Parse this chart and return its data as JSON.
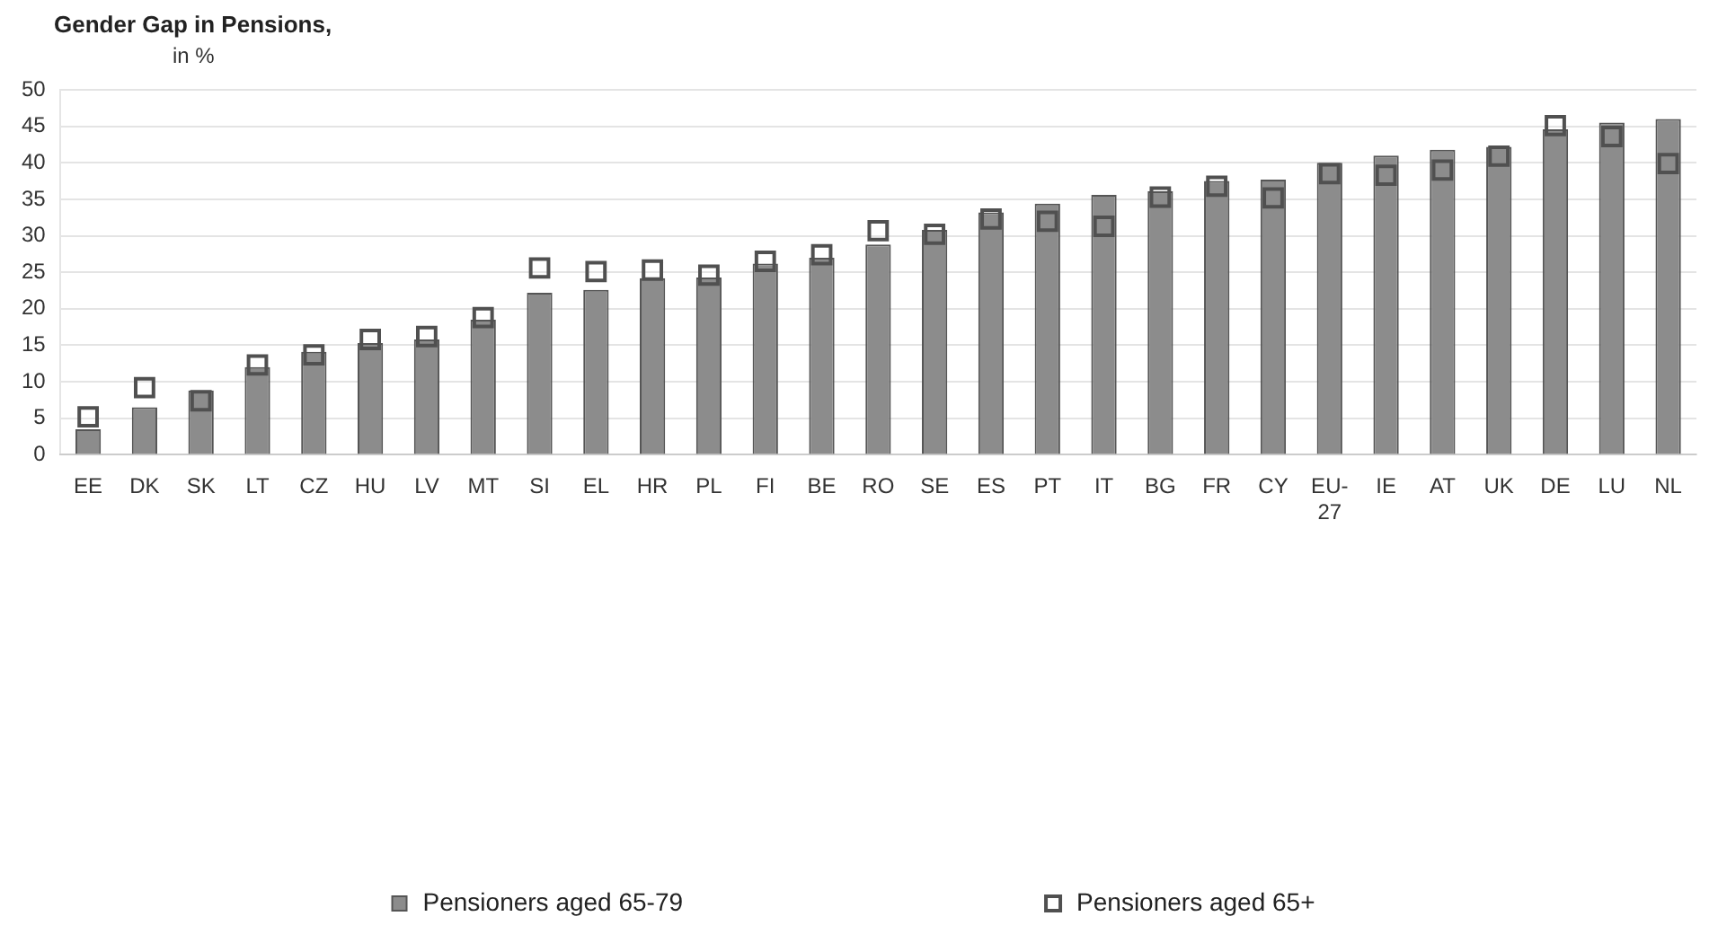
{
  "chart_data": {
    "type": "bar",
    "title": "Gender Gap in Pensions,",
    "ylabel": "in %",
    "categories": [
      "EE",
      "DK",
      "SK",
      "LT",
      "CZ",
      "HU",
      "LV",
      "MT",
      "SI",
      "EL",
      "HR",
      "PL",
      "FI",
      "BE",
      "RO",
      "SE",
      "ES",
      "PT",
      "IT",
      "BG",
      "FR",
      "CY",
      "EU-27",
      "IE",
      "AT",
      "UK",
      "DE",
      "LU",
      "NL"
    ],
    "series": [
      {
        "name": "Pensioners aged 65-79",
        "type": "bar",
        "color": "#8c8c8c",
        "values": [
          3.5,
          6.5,
          8.8,
          12.0,
          14.1,
          15.3,
          15.8,
          18.5,
          22.2,
          22.6,
          24.2,
          24.3,
          26.2,
          27.0,
          28.8,
          30.8,
          33.2,
          34.4,
          35.6,
          36.1,
          37.5,
          37.7,
          40.0,
          41.0,
          41.8,
          42.2,
          44.6,
          45.5,
          46.0
        ]
      },
      {
        "name": "Pensioners aged 65+",
        "type": "scatter",
        "color": "#505050",
        "x": [
          "EE",
          "DK",
          "SK",
          "LT",
          "CZ",
          "HU",
          "LV",
          "MT",
          "SI",
          "EL",
          "HR",
          "PL",
          "FI",
          "BE",
          "RO",
          "SE",
          "ES",
          "PT",
          "IT",
          "BG",
          "FR",
          "CY",
          "EU-27",
          "IE",
          "AT",
          "UK",
          "DE",
          "LU",
          "NL"
        ],
        "values": [
          5.2,
          9.2,
          7.4,
          12.3,
          13.7,
          15.8,
          16.2,
          18.8,
          25.6,
          25.1,
          25.3,
          24.6,
          26.5,
          27.4,
          30.7,
          30.2,
          32.3,
          32.0,
          31.3,
          35.3,
          36.8,
          35.2,
          38.5,
          38.3,
          39.0,
          40.9,
          45.1,
          43.6,
          39.9
        ]
      }
    ],
    "ylim": [
      0,
      50
    ],
    "yticks": [
      0,
      5,
      10,
      15,
      20,
      25,
      30,
      35,
      40,
      45,
      50
    ],
    "grid": "y",
    "legend": "bottom",
    "marker": "square"
  }
}
